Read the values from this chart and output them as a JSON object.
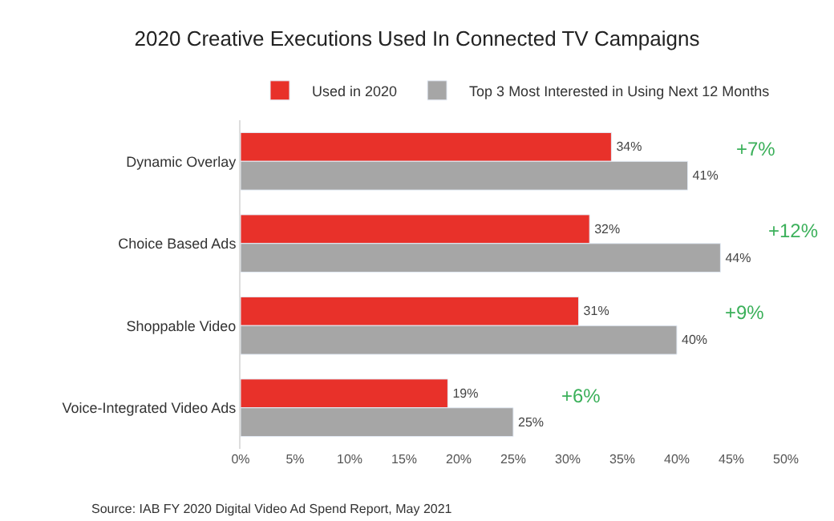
{
  "chart_data": {
    "type": "bar",
    "orientation": "horizontal",
    "title": "2020 Creative Executions Used In Connected TV Campaigns",
    "categories": [
      "Dynamic Overlay",
      "Choice Based Ads",
      "Shoppable Video",
      "Voice-Integrated Video Ads"
    ],
    "series": [
      {
        "name": "Used in 2020",
        "color": "#e8312a",
        "values": [
          34,
          32,
          31,
          19
        ],
        "value_labels": [
          "34%",
          "32%",
          "31%",
          "19%"
        ]
      },
      {
        "name": "Top 3 Most Interested in Using Next 12 Months",
        "color": "#a6a6a6",
        "values": [
          41,
          44,
          40,
          25
        ],
        "value_labels": [
          "41%",
          "44%",
          "40%",
          "25%"
        ]
      }
    ],
    "xlim": [
      0,
      50
    ],
    "xticks": [
      {
        "value": 0,
        "label": "0%"
      },
      {
        "value": 5,
        "label": "5%"
      },
      {
        "value": 10,
        "label": "10%"
      },
      {
        "value": 15,
        "label": "15%"
      },
      {
        "value": 20,
        "label": "20%"
      },
      {
        "value": 25,
        "label": "25%"
      },
      {
        "value": 30,
        "label": "30%"
      },
      {
        "value": 35,
        "label": "35%"
      },
      {
        "value": 40,
        "label": "40%"
      },
      {
        "value": 45,
        "label": "45%"
      },
      {
        "value": 50,
        "label": "50%"
      }
    ],
    "annotations": [
      "+7%",
      "+12%",
      "+9%",
      "+6%",
      "Source: IAB FY 2020 Digital Video Ad Spend Report, May 2021"
    ],
    "legend": "top"
  }
}
